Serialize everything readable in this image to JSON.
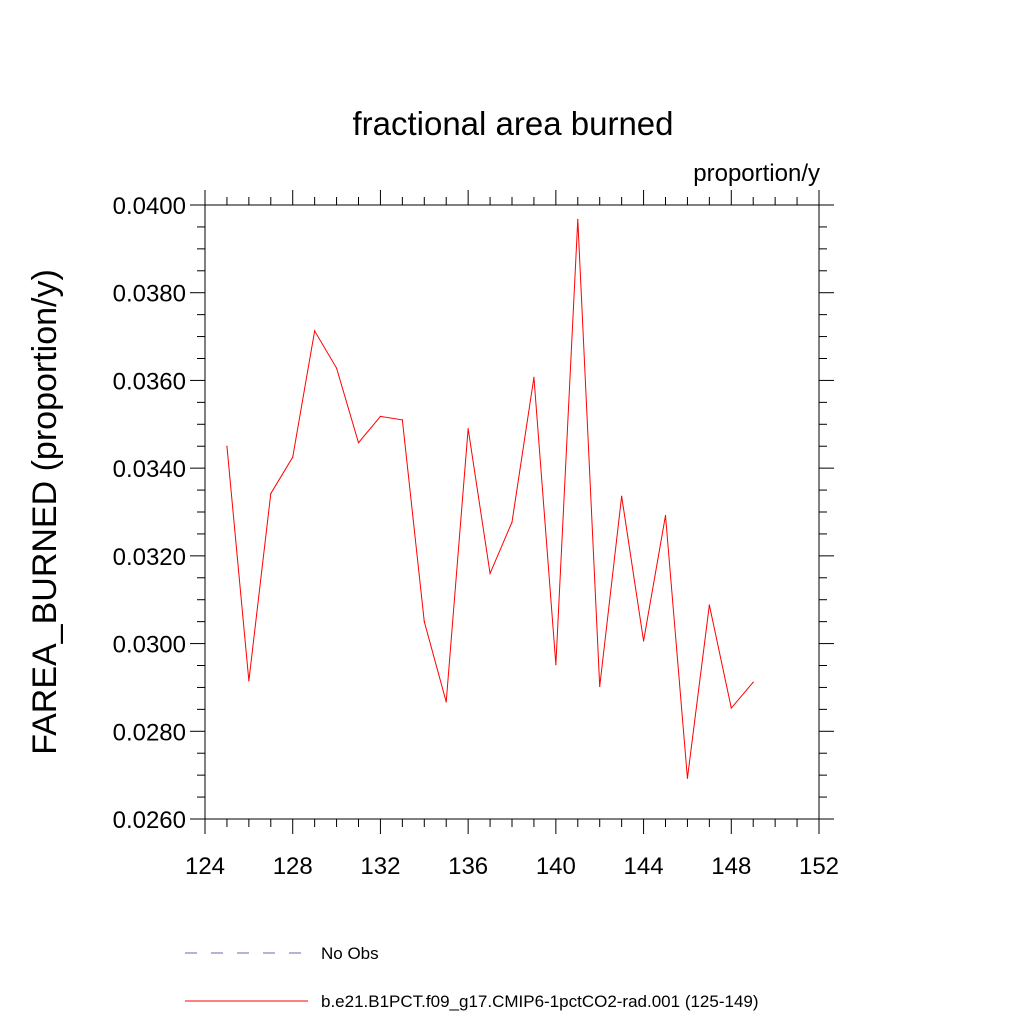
{
  "chart_data": {
    "type": "line",
    "title": "fractional area burned",
    "units_label": "proportion/y",
    "xlabel": "",
    "ylabel": "FAREA_BURNED  (proportion/y)",
    "xlim": [
      124,
      152
    ],
    "ylim": [
      0.026,
      0.04
    ],
    "x_ticks": [
      124,
      128,
      132,
      136,
      140,
      144,
      148,
      152
    ],
    "x_tick_labels": [
      "124",
      "128",
      "132",
      "136",
      "140",
      "144",
      "148",
      "152"
    ],
    "y_ticks": [
      0.026,
      0.028,
      0.03,
      0.032,
      0.034,
      0.036,
      0.038,
      0.04
    ],
    "y_tick_labels": [
      "0.0260",
      "0.0280",
      "0.0300",
      "0.0320",
      "0.0340",
      "0.0360",
      "0.0380",
      "0.0400"
    ],
    "grid": false,
    "legend_position": "bottom",
    "series": [
      {
        "name": "b.e21.B1PCT.f09_g17.CMIP6-1pctCO2-rad.001 (125-149)",
        "color": "#ff0000",
        "style": "solid",
        "x": [
          125,
          126,
          127,
          128,
          129,
          130,
          131,
          132,
          133,
          134,
          135,
          136,
          137,
          138,
          139,
          140,
          141,
          142,
          143,
          144,
          145,
          146,
          147,
          148,
          149
        ],
        "values": [
          0.0345,
          0.02915,
          0.03342,
          0.03425,
          0.03713,
          0.03628,
          0.03458,
          0.03518,
          0.0351,
          0.0305,
          0.02867,
          0.0349,
          0.0316,
          0.03277,
          0.03607,
          0.02952,
          0.03967,
          0.02902,
          0.03336,
          0.03006,
          0.03292,
          0.02693,
          0.03088,
          0.02853,
          0.02912
        ]
      }
    ],
    "legend_entries": [
      {
        "label": "No Obs",
        "color": "#6a6ab4",
        "style": "dashed"
      },
      {
        "label": "b.e21.B1PCT.f09_g17.CMIP6-1pctCO2-rad.001 (125-149)",
        "color": "#ff0000",
        "style": "solid"
      }
    ]
  }
}
